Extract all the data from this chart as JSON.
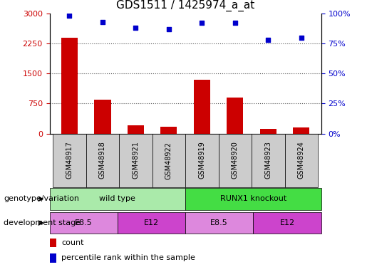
{
  "title": "GDS1511 / 1425974_a_at",
  "samples": [
    "GSM48917",
    "GSM48918",
    "GSM48921",
    "GSM48922",
    "GSM48919",
    "GSM48920",
    "GSM48923",
    "GSM48924"
  ],
  "counts": [
    2400,
    850,
    200,
    175,
    1350,
    900,
    120,
    150
  ],
  "percentiles": [
    98,
    93,
    88,
    87,
    92,
    92,
    78,
    80
  ],
  "ylim_left": [
    0,
    3000
  ],
  "ylim_right": [
    0,
    100
  ],
  "yticks_left": [
    0,
    750,
    1500,
    2250,
    3000
  ],
  "yticks_right": [
    0,
    25,
    50,
    75,
    100
  ],
  "bar_color": "#cc0000",
  "dot_color": "#0000cc",
  "genotype_groups": [
    {
      "label": "wild type",
      "start": 0,
      "end": 4,
      "color": "#aaeaaa"
    },
    {
      "label": "RUNX1 knockout",
      "start": 4,
      "end": 8,
      "color": "#44dd44"
    }
  ],
  "dev_stage_groups": [
    {
      "label": "E8.5",
      "start": 0,
      "end": 2,
      "color": "#dd88dd"
    },
    {
      "label": "E12",
      "start": 2,
      "end": 4,
      "color": "#cc44cc"
    },
    {
      "label": "E8.5",
      "start": 4,
      "end": 6,
      "color": "#dd88dd"
    },
    {
      "label": "E12",
      "start": 6,
      "end": 8,
      "color": "#cc44cc"
    }
  ],
  "sample_box_color": "#cccccc",
  "legend_count_color": "#cc0000",
  "legend_dot_color": "#0000cc",
  "dotted_line_color": "#555555",
  "background_color": "#ffffff",
  "title_fontsize": 11,
  "tick_fontsize": 8,
  "sample_fontsize": 7,
  "annot_fontsize": 8,
  "legend_fontsize": 8
}
